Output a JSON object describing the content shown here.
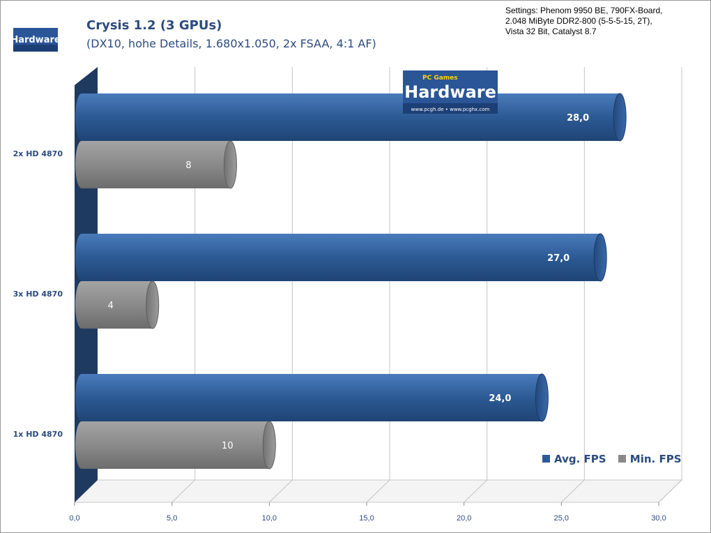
{
  "header": {
    "title": "Crysis 1.2 (3 GPUs)",
    "subtitle": "(DX10, hohe Details, 1.680x1.050, 2x FSAA, 4:1 AF)",
    "settings": [
      "Settings: Phenom 9950 BE, 790FX-Board,",
      "2.048 MiByte DDR2-800 (5-5-5-15,  2T),",
      "Vista 32 Bit, Catalyst 8.7"
    ],
    "logo_text": "Hardware"
  },
  "watermark": {
    "top": "PC Games",
    "main": "Hardware",
    "url": "www.pcgh.de • www.pcghx.com"
  },
  "colors": {
    "avg": "#2c5a94",
    "min": "#8a8a8a",
    "axis_wall": "#1f3a5f",
    "text": "#2b4b7e"
  },
  "chart_data": {
    "type": "bar",
    "orientation": "horizontal",
    "categories": [
      "2x HD 4870",
      "3x HD 4870",
      "1x HD 4870"
    ],
    "series": [
      {
        "name": "Avg. FPS",
        "values": [
          28.0,
          27.0,
          24.0
        ],
        "labels": [
          "28,0",
          "27,0",
          "24,0"
        ]
      },
      {
        "name": "Min. FPS",
        "values": [
          8,
          4,
          10
        ],
        "labels": [
          "8",
          "4",
          "10"
        ]
      }
    ],
    "xlim": [
      0,
      30
    ],
    "xticks": [
      "0,0",
      "5,0",
      "10,0",
      "15,0",
      "20,0",
      "25,0",
      "30,0"
    ],
    "grid": true,
    "legend": "bottom-right"
  }
}
